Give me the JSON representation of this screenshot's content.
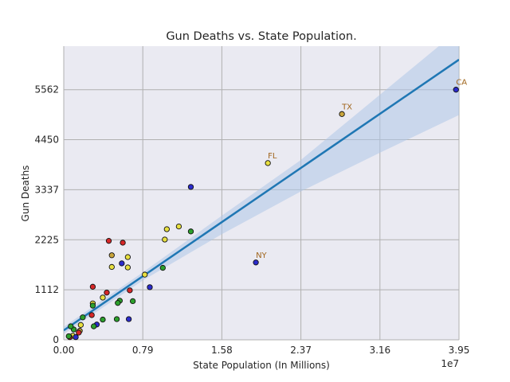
{
  "chart_data": {
    "type": "scatter",
    "title": "Gun Deaths vs. State Population.",
    "xlabel": "State Population (In Millions)",
    "ylabel": "Gun Deaths",
    "x_offset_label": "1e7",
    "xlim": [
      0,
      39500000
    ],
    "ylim": [
      0,
      6530
    ],
    "x_ticks": [
      0,
      7900000,
      15800000,
      23700000,
      31600000,
      39500000
    ],
    "x_tick_labels": [
      "0.00",
      "0.79",
      "1.58",
      "2.37",
      "3.16",
      "3.95"
    ],
    "y_ticks": [
      0,
      1112,
      2225,
      3337,
      4450,
      5562
    ],
    "y_tick_labels": [
      "0",
      "1112",
      "2225",
      "3337",
      "4450",
      "5562"
    ],
    "grid": true,
    "regression": {
      "intercept": 210,
      "slope": 0.0001524,
      "x_range": [
        0,
        39500000
      ]
    },
    "confidence_band": {
      "x": [
        0,
        7900000,
        15800000,
        23700000,
        31600000,
        39500000
      ],
      "lower": [
        130,
        1320,
        2350,
        3300,
        4160,
        5000
      ],
      "upper": [
        290,
        1500,
        2760,
        4000,
        5450,
        6900
      ]
    },
    "colors": {
      "background": "#eaeaf2",
      "grid": "#b0b0b0",
      "line": "#1f77b4",
      "band": "#aec7e8",
      "annotation": "#a0651c",
      "red": "#d62728",
      "yellow": "#e8e040",
      "green": "#2ca02c",
      "blue": "#2b2bcc",
      "orange": "#c9a53c"
    },
    "points": [
      {
        "x": 39200000,
        "y": 5562,
        "color": "blue",
        "label": "CA"
      },
      {
        "x": 27800000,
        "y": 5020,
        "color": "orange",
        "label": "TX"
      },
      {
        "x": 20400000,
        "y": 3930,
        "color": "yellow",
        "label": "FL"
      },
      {
        "x": 19200000,
        "y": 1720,
        "color": "blue",
        "label": "NY"
      },
      {
        "x": 12700000,
        "y": 3400,
        "color": "blue"
      },
      {
        "x": 12700000,
        "y": 2410,
        "color": "green"
      },
      {
        "x": 11500000,
        "y": 2520,
        "color": "yellow"
      },
      {
        "x": 10300000,
        "y": 2460,
        "color": "yellow"
      },
      {
        "x": 10100000,
        "y": 2230,
        "color": "yellow"
      },
      {
        "x": 9900000,
        "y": 1600,
        "color": "green"
      },
      {
        "x": 8600000,
        "y": 1170,
        "color": "blue"
      },
      {
        "x": 8100000,
        "y": 1450,
        "color": "yellow"
      },
      {
        "x": 6900000,
        "y": 860,
        "color": "green"
      },
      {
        "x": 6600000,
        "y": 1100,
        "color": "red"
      },
      {
        "x": 6400000,
        "y": 1840,
        "color": "yellow"
      },
      {
        "x": 6400000,
        "y": 1610,
        "color": "yellow"
      },
      {
        "x": 6500000,
        "y": 460,
        "color": "blue"
      },
      {
        "x": 5900000,
        "y": 2160,
        "color": "red"
      },
      {
        "x": 5800000,
        "y": 1700,
        "color": "blue"
      },
      {
        "x": 5600000,
        "y": 870,
        "color": "green"
      },
      {
        "x": 5400000,
        "y": 820,
        "color": "green"
      },
      {
        "x": 5300000,
        "y": 460,
        "color": "green"
      },
      {
        "x": 4800000,
        "y": 1880,
        "color": "orange"
      },
      {
        "x": 4800000,
        "y": 1620,
        "color": "yellow"
      },
      {
        "x": 4500000,
        "y": 2200,
        "color": "red"
      },
      {
        "x": 4300000,
        "y": 1050,
        "color": "red"
      },
      {
        "x": 3900000,
        "y": 940,
        "color": "yellow"
      },
      {
        "x": 3900000,
        "y": 450,
        "color": "green"
      },
      {
        "x": 3300000,
        "y": 340,
        "color": "blue"
      },
      {
        "x": 2900000,
        "y": 1180,
        "color": "red"
      },
      {
        "x": 2900000,
        "y": 810,
        "color": "yellow"
      },
      {
        "x": 2900000,
        "y": 760,
        "color": "green"
      },
      {
        "x": 2800000,
        "y": 550,
        "color": "red"
      },
      {
        "x": 3000000,
        "y": 300,
        "color": "green"
      },
      {
        "x": 1900000,
        "y": 500,
        "color": "green"
      },
      {
        "x": 1700000,
        "y": 330,
        "color": "yellow"
      },
      {
        "x": 1600000,
        "y": 200,
        "color": "orange"
      },
      {
        "x": 1500000,
        "y": 160,
        "color": "red"
      },
      {
        "x": 1000000,
        "y": 230,
        "color": "green"
      },
      {
        "x": 900000,
        "y": 90,
        "color": "yellow"
      },
      {
        "x": 700000,
        "y": 300,
        "color": "green"
      },
      {
        "x": 1200000,
        "y": 60,
        "color": "blue"
      },
      {
        "x": 600000,
        "y": 60,
        "color": "red"
      },
      {
        "x": 500000,
        "y": 80,
        "color": "green"
      }
    ]
  }
}
